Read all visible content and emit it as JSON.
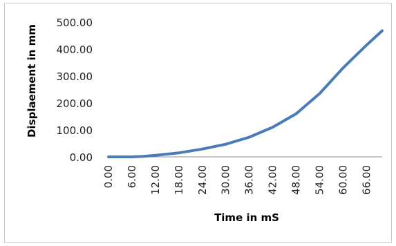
{
  "chart_data": {
    "type": "line",
    "title": "",
    "xlabel": "Time in mS",
    "ylabel": "Displaement in mm",
    "x_tick_labels": [
      "0.00",
      "6.00",
      "12.00",
      "18.00",
      "24.00",
      "30.00",
      "36.00",
      "42.00",
      "48.00",
      "54.00",
      "60.00",
      "66.00"
    ],
    "y_tick_labels": [
      "0.00",
      "100.00",
      "200.00",
      "300.00",
      "400.00",
      "500.00"
    ],
    "ylim": [
      0,
      500
    ],
    "xlim": [
      0,
      70
    ],
    "grid": false,
    "legend": "none",
    "series_color": "#4a7ab7",
    "series": [
      {
        "x": [
          0,
          6,
          9,
          12,
          18,
          24,
          30,
          36,
          42,
          48,
          54,
          60,
          66,
          70
        ],
        "y": [
          0,
          0,
          2,
          6,
          15,
          29,
          47,
          73,
          110,
          160,
          235,
          330,
          415,
          468
        ]
      }
    ]
  }
}
